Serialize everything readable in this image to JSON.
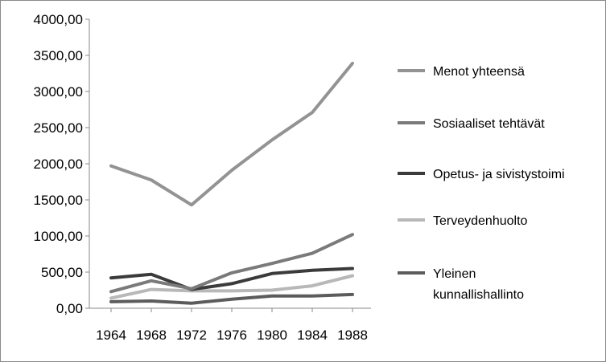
{
  "chart_data": {
    "type": "line",
    "title": "",
    "xlabel": "",
    "ylabel": "",
    "categories": [
      "1964",
      "1968",
      "1972",
      "1976",
      "1980",
      "1984",
      "1988"
    ],
    "ylim": [
      0,
      4000
    ],
    "yticks": [
      0,
      500,
      1000,
      1500,
      2000,
      2500,
      3000,
      3500,
      4000
    ],
    "ytick_labels": [
      "0,00",
      "500,00",
      "1000,00",
      "1500,00",
      "2000,00",
      "2500,00",
      "3000,00",
      "3500,00",
      "4000,00"
    ],
    "grid": false,
    "legend_position": "right",
    "series": [
      {
        "name": "Menot yhteensä",
        "label_lines": [
          "Menot yhteensä"
        ],
        "color": "#939393",
        "values": [
          1970,
          1775,
          1430,
          1910,
          2330,
          2710,
          3390
        ]
      },
      {
        "name": "Sosiaaliset tehtävät",
        "label_lines": [
          "Sosiaaliset tehtävät"
        ],
        "color": "#7a7a7a",
        "values": [
          230,
          380,
          270,
          490,
          620,
          760,
          1020
        ]
      },
      {
        "name": "Opetus- ja sivistystoimi",
        "label_lines": [
          "Opetus- ja sivistystoimi"
        ],
        "color": "#3b3b3b",
        "values": [
          420,
          470,
          260,
          340,
          480,
          525,
          550
        ]
      },
      {
        "name": "Terveydenhuolto",
        "label_lines": [
          "Terveydenhuolto"
        ],
        "color": "#b8b8b8",
        "values": [
          140,
          260,
          240,
          240,
          250,
          310,
          450
        ]
      },
      {
        "name": "Yleinen kunnallishallinto",
        "label_lines": [
          "Yleinen",
          "kunnallishallinto"
        ],
        "color": "#5c5c5c",
        "values": [
          90,
          100,
          70,
          125,
          170,
          170,
          190
        ]
      }
    ]
  }
}
